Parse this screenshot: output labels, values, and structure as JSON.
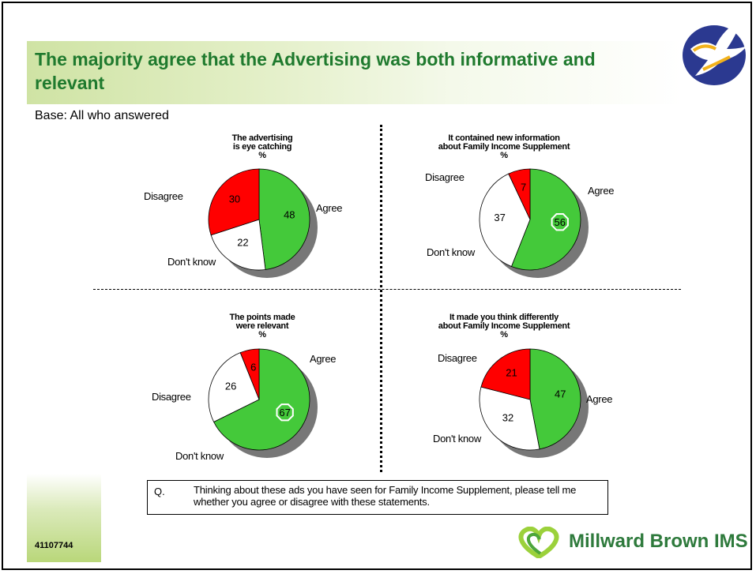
{
  "slide": {
    "title": "The majority agree that the Advertising was both informative and relevant",
    "base": "Base: All who answered",
    "code": "41107744",
    "question_number": "Q.",
    "question_text": "Thinking about these ads you have seen for Family Income Supplement, please tell me whether you agree or disagree with these statements.",
    "brand": "Millward Brown IMS"
  },
  "colors": {
    "agree": "#44c93a",
    "disagree": "#ff0000",
    "dont_know": "#ffffff",
    "shadow": "#777777",
    "title": "#1f7a2e"
  },
  "chart_data": [
    {
      "type": "pie",
      "title": [
        "The advertising",
        "is eye catching",
        "%"
      ],
      "categories": [
        "Agree",
        "Don't know",
        "Disagree"
      ],
      "values": [
        48,
        22,
        30
      ],
      "highlight": null
    },
    {
      "type": "pie",
      "title": [
        "It contained new information",
        "about Family Income Supplement",
        "%"
      ],
      "categories": [
        "Agree",
        "Don't know",
        "Disagree"
      ],
      "values": [
        56,
        37,
        7
      ],
      "highlight": "Agree"
    },
    {
      "type": "pie",
      "title": [
        "The points made",
        "were relevant",
        "%"
      ],
      "categories": [
        "Agree",
        "Don't know",
        "Disagree"
      ],
      "values": [
        67,
        26,
        6
      ],
      "highlight": "Agree"
    },
    {
      "type": "pie",
      "title": [
        "It made you think differently",
        "about Family Income Supplement",
        "%"
      ],
      "categories": [
        "Agree",
        "Don't know",
        "Disagree"
      ],
      "values": [
        47,
        32,
        21
      ],
      "highlight": null
    }
  ]
}
